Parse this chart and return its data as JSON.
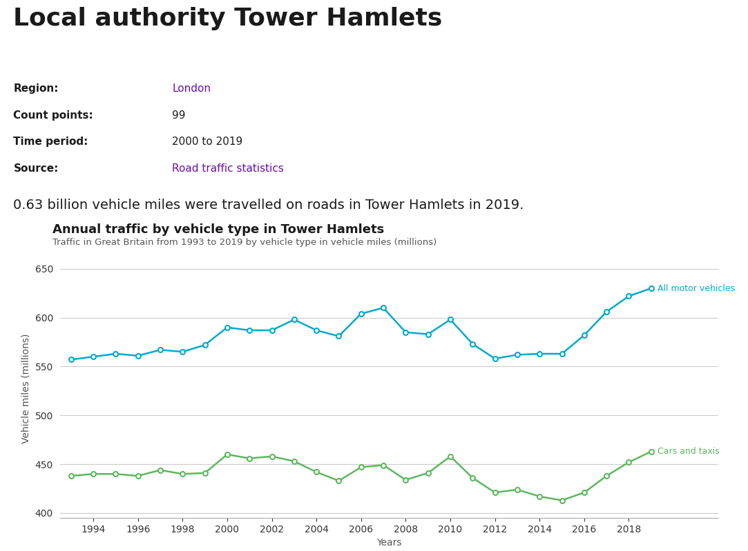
{
  "title": "Local authority Tower Hamlets",
  "region_label": "Region:",
  "region_value": "London",
  "count_points_label": "Count points:",
  "count_points_value": "99",
  "time_period_label": "Time period:",
  "time_period_value": "2000 to 2019",
  "source_label": "Source:",
  "source_value": "Road traffic statistics",
  "summary_text": "0.63 billion vehicle miles were travelled on roads in Tower Hamlets in 2019.",
  "chart_title": "Annual traffic by vehicle type in Tower Hamlets",
  "chart_subtitle": "Traffic in Great Britain from 1993 to 2019 by vehicle type in vehicle miles (millions)",
  "xlabel": "Years",
  "ylabel": "Vehicle miles (millions)",
  "ylim": [
    395,
    660
  ],
  "yticks": [
    400,
    450,
    500,
    550,
    600,
    650
  ],
  "years": [
    1993,
    1994,
    1995,
    1996,
    1997,
    1998,
    1999,
    2000,
    2001,
    2002,
    2003,
    2004,
    2005,
    2006,
    2007,
    2008,
    2009,
    2010,
    2011,
    2012,
    2013,
    2014,
    2015,
    2016,
    2017,
    2018,
    2019
  ],
  "all_motor": [
    557,
    560,
    563,
    561,
    567,
    565,
    572,
    590,
    587,
    587,
    598,
    587,
    581,
    604,
    610,
    585,
    583,
    598,
    573,
    558,
    562,
    563,
    563,
    582,
    606,
    622,
    630
  ],
  "cars_taxis": [
    438,
    440,
    440,
    438,
    444,
    440,
    441,
    460,
    456,
    458,
    453,
    442,
    433,
    447,
    449,
    434,
    441,
    458,
    436,
    421,
    424,
    417,
    413,
    421,
    438,
    452,
    463
  ],
  "all_motor_color": "#00a9ce",
  "cars_taxis_color": "#5cb85c",
  "background_color": "#ffffff",
  "grid_color": "#cccccc",
  "link_color": "#6a0dad",
  "all_motor_label": "All motor vehicles",
  "cars_taxis_label": "Cars and taxis"
}
